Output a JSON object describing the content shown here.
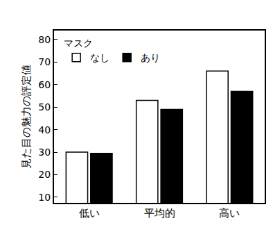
{
  "chart_data": {
    "type": "bar",
    "y_label": "見た目の魅力の評定値",
    "legend_title": "マスク",
    "categories": [
      "低い",
      "平均的",
      "高い"
    ],
    "series": [
      {
        "name": "なし",
        "color": "#ffffff",
        "values": [
          30,
          53,
          66
        ]
      },
      {
        "name": "あり",
        "color": "#000000",
        "values": [
          29.5,
          49,
          57
        ]
      }
    ],
    "ylim": [
      7.5,
      84
    ],
    "yticks": [
      10,
      20,
      30,
      40,
      50,
      60,
      70,
      80
    ],
    "grid": false,
    "legend": "top left"
  }
}
